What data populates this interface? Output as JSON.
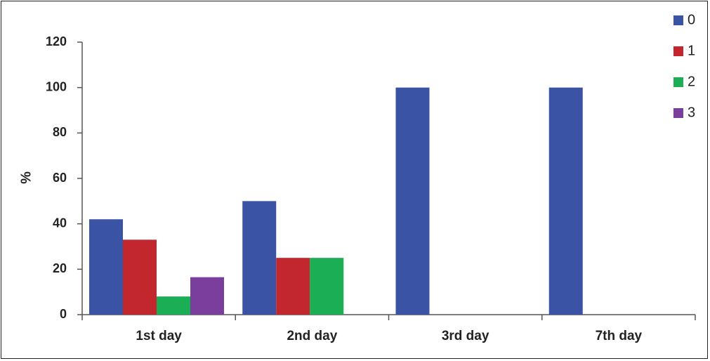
{
  "chart_data": {
    "type": "bar",
    "ylabel": "%",
    "xlabel": "",
    "ylim": [
      0,
      120
    ],
    "yticks": [
      0,
      20,
      40,
      60,
      80,
      100,
      120
    ],
    "categories": [
      "1st day",
      "2nd day",
      "3rd day",
      "7th day"
    ],
    "legend_position": "top-right",
    "grid": false,
    "series": [
      {
        "name": "0",
        "color": "#3a53a4",
        "values": [
          42,
          50,
          100,
          100
        ]
      },
      {
        "name": "1",
        "color": "#c1272d",
        "values": [
          33,
          25,
          0,
          0
        ]
      },
      {
        "name": "2",
        "color": "#1bae55",
        "values": [
          8,
          25,
          0,
          0
        ]
      },
      {
        "name": "3",
        "color": "#7a3e9d",
        "values": [
          16.5,
          0,
          0,
          0
        ]
      }
    ]
  }
}
